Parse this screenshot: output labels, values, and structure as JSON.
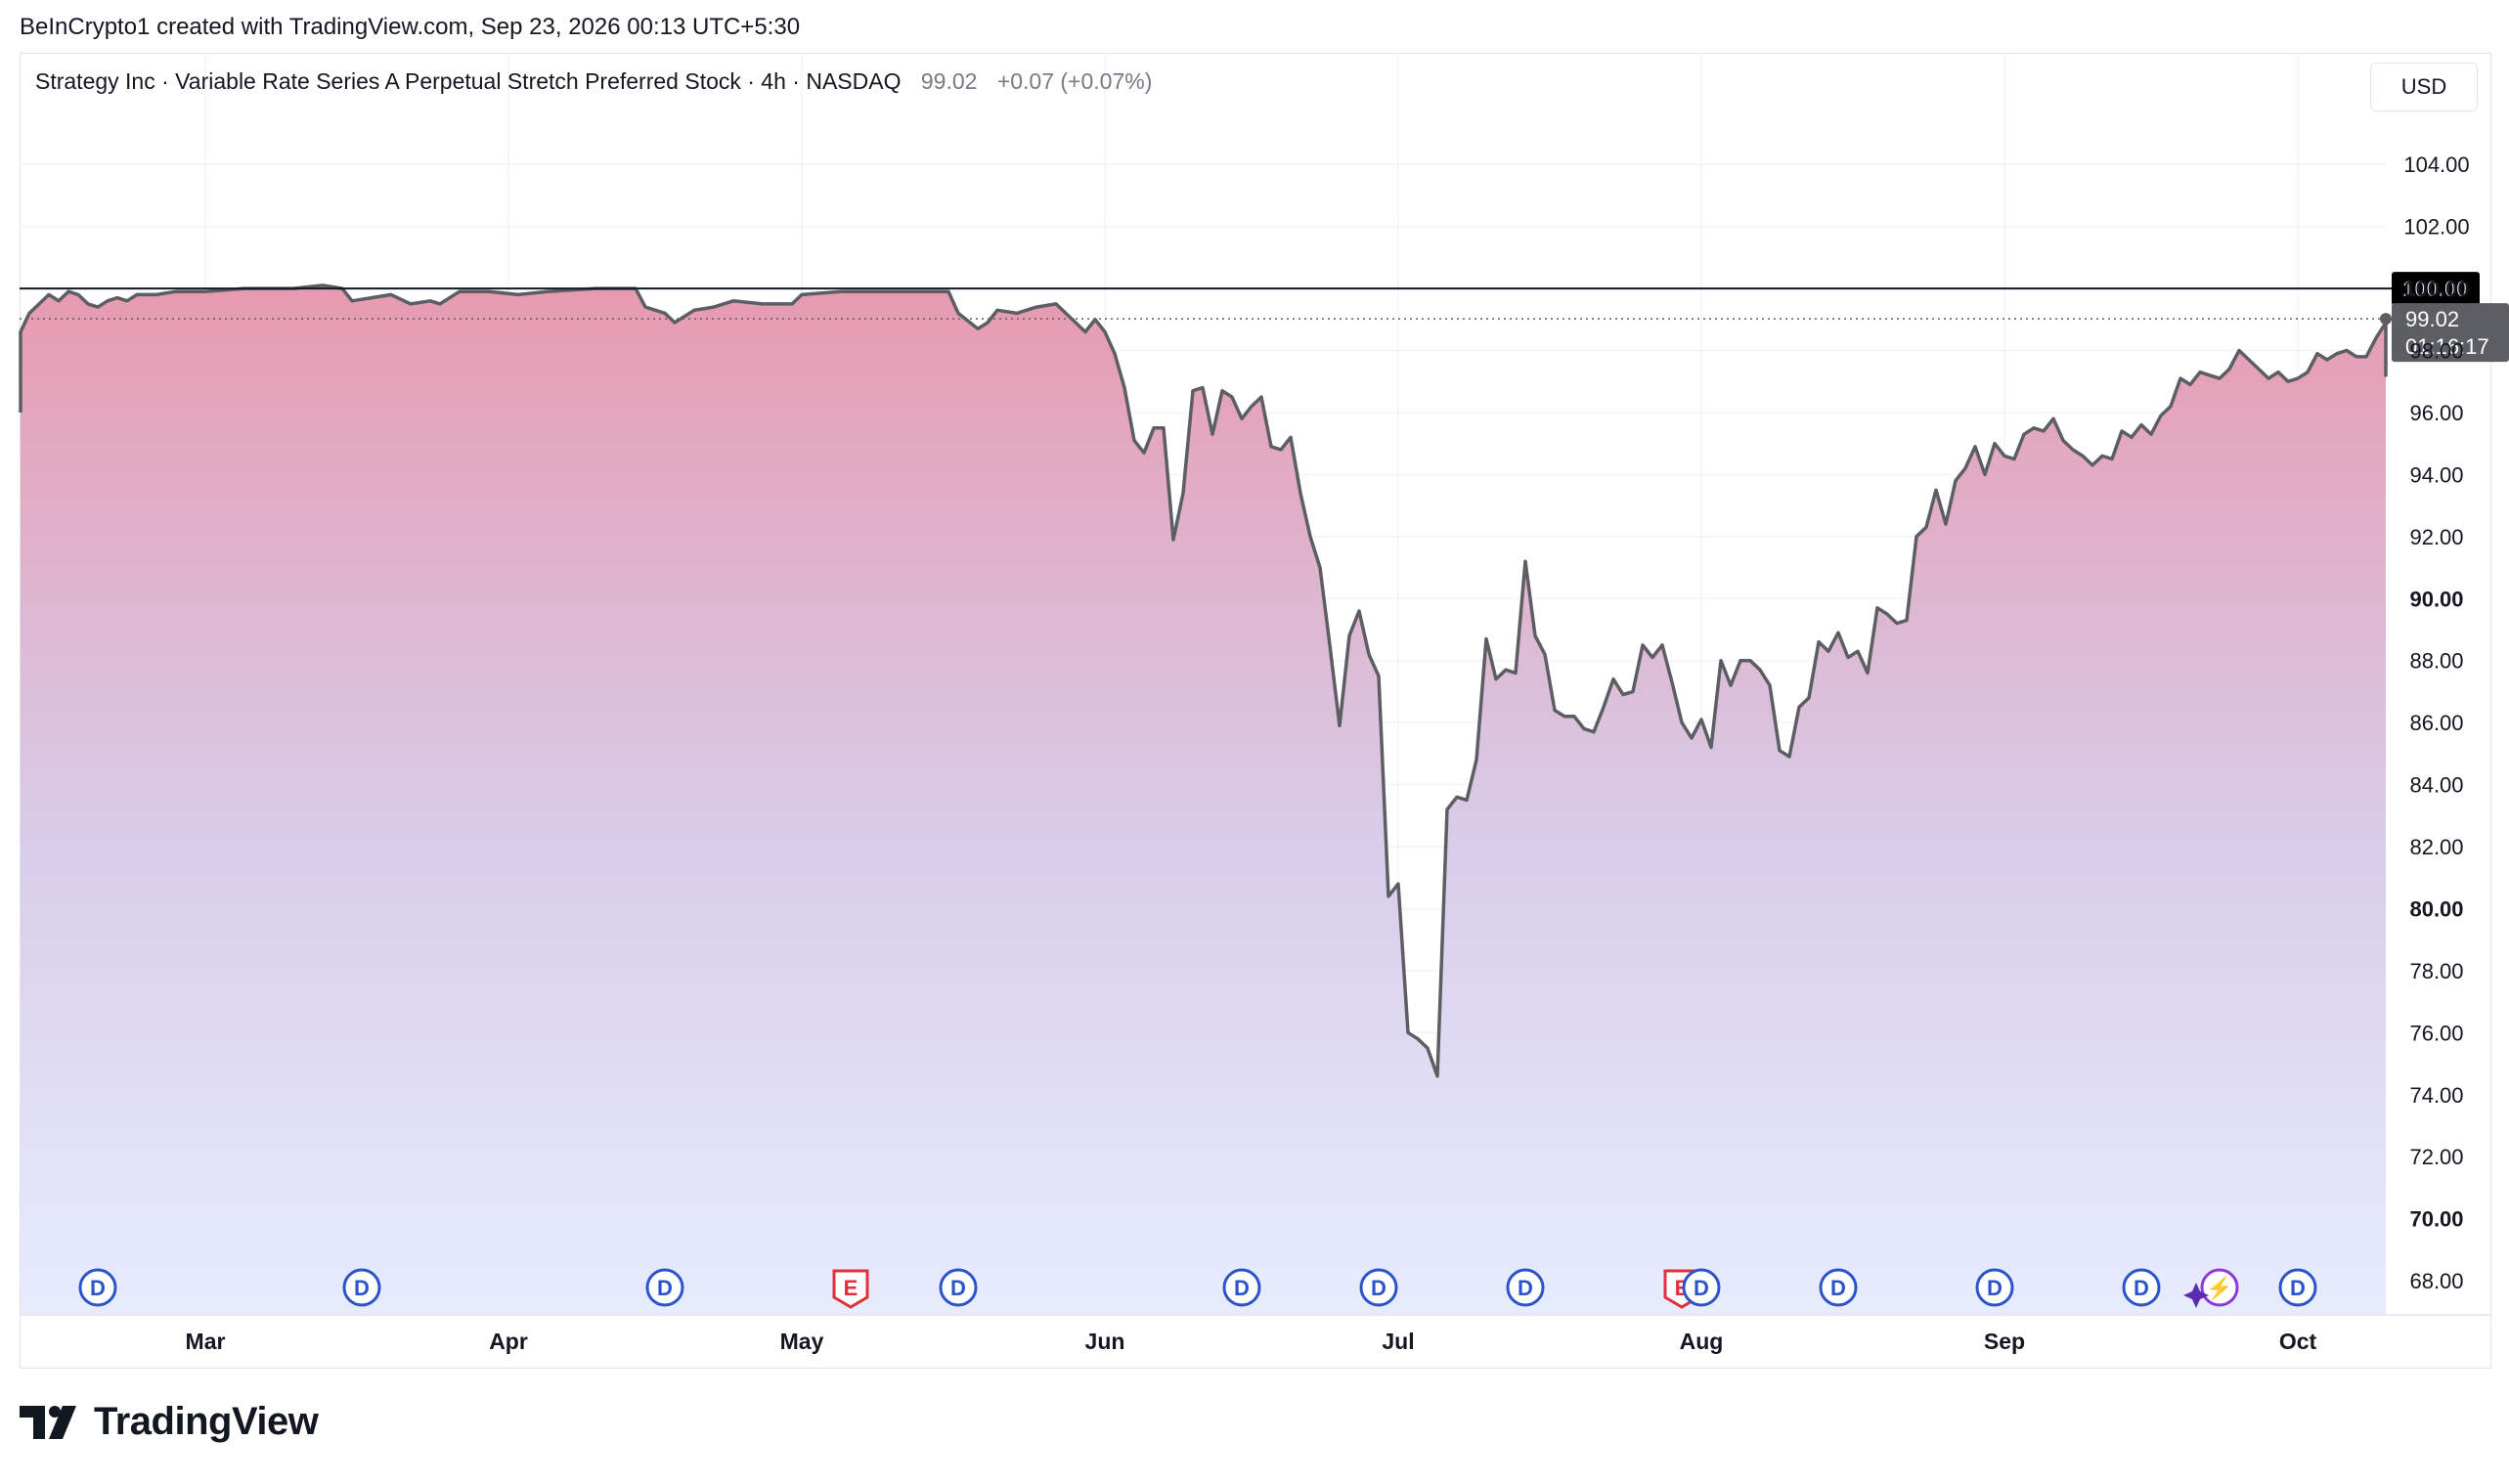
{
  "header": {
    "credit": "BeInCrypto1 created with TradingView.com, Sep 23, 2026 00:13 UTC+5:30"
  },
  "legend": {
    "name": "Strategy Inc · Variable Rate Series A Perpetual Stretch Preferred Stock · 4h · NASDAQ",
    "last": "99.02",
    "change": "+0.07 (+0.07%)"
  },
  "currency": "USD",
  "brand": {
    "name": "TradingView"
  },
  "colors": {
    "line": "#5d5e63",
    "fill_top": "#e69aaf",
    "fill_bottom": "#e7ecfd",
    "marker_blue": "#2a54c9",
    "marker_red": "#e0303a",
    "marker_purple": "#8e3bd6"
  },
  "chart_data": {
    "type": "area",
    "title": "Strategy Inc · Variable Rate Series A Perpetual Stretch Preferred Stock · 4h · NASDAQ",
    "ylim": [
      66.9,
      107.6
    ],
    "y_ticks": [
      68,
      70,
      72,
      74,
      76,
      78,
      80,
      82,
      84,
      86,
      88,
      90,
      92,
      94,
      96,
      98,
      100,
      102,
      104
    ],
    "y_tick_labels": [
      "68.00",
      "70.00",
      "72.00",
      "74.00",
      "76.00",
      "78.00",
      "80.00",
      "82.00",
      "84.00",
      "86.00",
      "88.00",
      "90.00",
      "92.00",
      "94.00",
      "96.00",
      "98.00",
      "100.00",
      "102.00",
      "104.00"
    ],
    "bold_ticks": [
      70,
      80,
      90,
      100
    ],
    "x_range": [
      "2026-02-10",
      "2026-10-10"
    ],
    "x_ticks": [
      {
        "label": "Mar",
        "date": "2026-03-01"
      },
      {
        "label": "Apr",
        "date": "2026-04-01"
      },
      {
        "label": "May",
        "date": "2026-05-01"
      },
      {
        "label": "Jun",
        "date": "2026-06-01"
      },
      {
        "label": "Jul",
        "date": "2026-07-01"
      },
      {
        "label": "Aug",
        "date": "2026-08-01"
      },
      {
        "label": "Sep",
        "date": "2026-09-01"
      },
      {
        "label": "Oct",
        "date": "2026-10-01"
      }
    ],
    "reference_line": {
      "value": 100,
      "label": "100.00"
    },
    "last_price": {
      "value": 99.02,
      "label": "99.02",
      "countdown": "01:16:17"
    },
    "series": [
      {
        "points": [
          [
            "2026-02-09",
            96.0
          ],
          [
            "2026-02-10",
            98.6
          ],
          [
            "2026-02-11",
            99.2
          ],
          [
            "2026-02-12",
            99.5
          ],
          [
            "2026-02-13",
            99.8
          ],
          [
            "2026-02-14",
            99.6
          ],
          [
            "2026-02-15",
            99.9
          ],
          [
            "2026-02-16",
            99.8
          ],
          [
            "2026-02-17",
            99.5
          ],
          [
            "2026-02-18",
            99.4
          ],
          [
            "2026-02-19",
            99.6
          ],
          [
            "2026-02-20",
            99.7
          ],
          [
            "2026-02-21",
            99.6
          ],
          [
            "2026-02-22",
            99.8
          ],
          [
            "2026-02-24",
            99.8
          ],
          [
            "2026-02-26",
            99.9
          ],
          [
            "2026-03-01",
            99.9
          ],
          [
            "2026-03-05",
            100.0
          ],
          [
            "2026-03-10",
            100.0
          ],
          [
            "2026-03-13",
            100.1
          ],
          [
            "2026-03-15",
            100.0
          ],
          [
            "2026-03-16",
            99.6
          ],
          [
            "2026-03-18",
            99.7
          ],
          [
            "2026-03-20",
            99.8
          ],
          [
            "2026-03-22",
            99.5
          ],
          [
            "2026-03-24",
            99.6
          ],
          [
            "2026-03-25",
            99.5
          ],
          [
            "2026-03-27",
            99.9
          ],
          [
            "2026-03-30",
            99.9
          ],
          [
            "2026-04-02",
            99.8
          ],
          [
            "2026-04-05",
            99.9
          ],
          [
            "2026-04-10",
            100.0
          ],
          [
            "2026-04-14",
            100.0
          ],
          [
            "2026-04-15",
            99.4
          ],
          [
            "2026-04-17",
            99.2
          ],
          [
            "2026-04-18",
            98.9
          ],
          [
            "2026-04-20",
            99.3
          ],
          [
            "2026-04-22",
            99.4
          ],
          [
            "2026-04-24",
            99.6
          ],
          [
            "2026-04-27",
            99.5
          ],
          [
            "2026-04-30",
            99.5
          ],
          [
            "2026-05-01",
            99.8
          ],
          [
            "2026-05-05",
            99.9
          ],
          [
            "2026-05-10",
            99.9
          ],
          [
            "2026-05-15",
            99.9
          ],
          [
            "2026-05-16",
            99.9
          ],
          [
            "2026-05-17",
            99.2
          ],
          [
            "2026-05-19",
            98.7
          ],
          [
            "2026-05-20",
            98.9
          ],
          [
            "2026-05-21",
            99.3
          ],
          [
            "2026-05-23",
            99.2
          ],
          [
            "2026-05-25",
            99.4
          ],
          [
            "2026-05-27",
            99.5
          ],
          [
            "2026-05-28",
            99.2
          ],
          [
            "2026-05-30",
            98.6
          ],
          [
            "2026-05-31",
            99.0
          ],
          [
            "2026-06-01",
            98.6
          ],
          [
            "2026-06-02",
            97.9
          ],
          [
            "2026-06-03",
            96.8
          ],
          [
            "2026-06-04",
            95.1
          ],
          [
            "2026-06-05",
            94.7
          ],
          [
            "2026-06-06",
            95.5
          ],
          [
            "2026-06-07",
            95.5
          ],
          [
            "2026-06-08",
            91.9
          ],
          [
            "2026-06-09",
            93.4
          ],
          [
            "2026-06-10",
            96.7
          ],
          [
            "2026-06-11",
            96.8
          ],
          [
            "2026-06-12",
            95.3
          ],
          [
            "2026-06-13",
            96.7
          ],
          [
            "2026-06-14",
            96.5
          ],
          [
            "2026-06-15",
            95.8
          ],
          [
            "2026-06-16",
            96.2
          ],
          [
            "2026-06-17",
            96.5
          ],
          [
            "2026-06-18",
            94.9
          ],
          [
            "2026-06-19",
            94.8
          ],
          [
            "2026-06-20",
            95.2
          ],
          [
            "2026-06-21",
            93.4
          ],
          [
            "2026-06-22",
            92.0
          ],
          [
            "2026-06-23",
            91.0
          ],
          [
            "2026-06-24",
            88.5
          ],
          [
            "2026-06-25",
            85.9
          ],
          [
            "2026-06-26",
            88.8
          ],
          [
            "2026-06-27",
            89.6
          ],
          [
            "2026-06-28",
            88.2
          ],
          [
            "2026-06-29",
            87.5
          ],
          [
            "2026-06-30",
            80.4
          ],
          [
            "2026-07-01",
            80.8
          ],
          [
            "2026-07-02",
            76.0
          ],
          [
            "2026-07-03",
            75.8
          ],
          [
            "2026-07-04",
            75.5
          ],
          [
            "2026-07-05",
            74.6
          ],
          [
            "2026-07-06",
            83.2
          ],
          [
            "2026-07-07",
            83.6
          ],
          [
            "2026-07-08",
            83.5
          ],
          [
            "2026-07-09",
            84.8
          ],
          [
            "2026-07-10",
            88.7
          ],
          [
            "2026-07-11",
            87.4
          ],
          [
            "2026-07-12",
            87.7
          ],
          [
            "2026-07-13",
            87.6
          ],
          [
            "2026-07-14",
            91.2
          ],
          [
            "2026-07-15",
            88.8
          ],
          [
            "2026-07-16",
            88.2
          ],
          [
            "2026-07-17",
            86.4
          ],
          [
            "2026-07-18",
            86.2
          ],
          [
            "2026-07-19",
            86.2
          ],
          [
            "2026-07-20",
            85.8
          ],
          [
            "2026-07-21",
            85.7
          ],
          [
            "2026-07-22",
            86.5
          ],
          [
            "2026-07-23",
            87.4
          ],
          [
            "2026-07-24",
            86.9
          ],
          [
            "2026-07-25",
            87.0
          ],
          [
            "2026-07-26",
            88.5
          ],
          [
            "2026-07-27",
            88.1
          ],
          [
            "2026-07-28",
            88.5
          ],
          [
            "2026-07-29",
            87.3
          ],
          [
            "2026-07-30",
            86.0
          ],
          [
            "2026-07-31",
            85.5
          ],
          [
            "2026-08-01",
            86.1
          ],
          [
            "2026-08-02",
            85.2
          ],
          [
            "2026-08-03",
            88.0
          ],
          [
            "2026-08-04",
            87.2
          ],
          [
            "2026-08-05",
            88.0
          ],
          [
            "2026-08-06",
            88.0
          ],
          [
            "2026-08-07",
            87.7
          ],
          [
            "2026-08-08",
            87.2
          ],
          [
            "2026-08-09",
            85.1
          ],
          [
            "2026-08-10",
            84.9
          ],
          [
            "2026-08-11",
            86.5
          ],
          [
            "2026-08-12",
            86.8
          ],
          [
            "2026-08-13",
            88.6
          ],
          [
            "2026-08-14",
            88.3
          ],
          [
            "2026-08-15",
            88.9
          ],
          [
            "2026-08-16",
            88.1
          ],
          [
            "2026-08-17",
            88.3
          ],
          [
            "2026-08-18",
            87.6
          ],
          [
            "2026-08-19",
            89.7
          ],
          [
            "2026-08-20",
            89.5
          ],
          [
            "2026-08-21",
            89.2
          ],
          [
            "2026-08-22",
            89.3
          ],
          [
            "2026-08-23",
            92.0
          ],
          [
            "2026-08-24",
            92.3
          ],
          [
            "2026-08-25",
            93.5
          ],
          [
            "2026-08-26",
            92.4
          ],
          [
            "2026-08-27",
            93.8
          ],
          [
            "2026-08-28",
            94.2
          ],
          [
            "2026-08-29",
            94.9
          ],
          [
            "2026-08-30",
            94.0
          ],
          [
            "2026-08-31",
            95.0
          ],
          [
            "2026-09-01",
            94.6
          ],
          [
            "2026-09-02",
            94.5
          ],
          [
            "2026-09-03",
            95.3
          ],
          [
            "2026-09-04",
            95.5
          ],
          [
            "2026-09-05",
            95.4
          ],
          [
            "2026-09-06",
            95.8
          ],
          [
            "2026-09-07",
            95.1
          ],
          [
            "2026-09-08",
            94.8
          ],
          [
            "2026-09-09",
            94.6
          ],
          [
            "2026-09-10",
            94.3
          ],
          [
            "2026-09-11",
            94.6
          ],
          [
            "2026-09-12",
            94.5
          ],
          [
            "2026-09-13",
            95.4
          ],
          [
            "2026-09-14",
            95.2
          ],
          [
            "2026-09-15",
            95.6
          ],
          [
            "2026-09-16",
            95.3
          ],
          [
            "2026-09-17",
            95.9
          ],
          [
            "2026-09-18",
            96.2
          ],
          [
            "2026-09-19",
            97.1
          ],
          [
            "2026-09-20",
            96.9
          ],
          [
            "2026-09-21",
            97.3
          ],
          [
            "2026-09-22",
            97.2
          ],
          [
            "2026-09-23",
            97.1
          ],
          [
            "2026-09-24",
            97.4
          ],
          [
            "2026-09-25",
            98.0
          ],
          [
            "2026-09-26",
            97.7
          ],
          [
            "2026-09-27",
            97.4
          ],
          [
            "2026-09-28",
            97.1
          ],
          [
            "2026-09-29",
            97.3
          ],
          [
            "2026-09-30",
            97.0
          ],
          [
            "2026-10-01",
            97.1
          ],
          [
            "2026-10-02",
            97.3
          ],
          [
            "2026-10-03",
            97.9
          ],
          [
            "2026-10-04",
            97.7
          ],
          [
            "2026-10-05",
            97.9
          ],
          [
            "2026-10-06",
            98.0
          ],
          [
            "2026-10-07",
            97.8
          ],
          [
            "2026-10-08",
            97.8
          ],
          [
            "2026-10-09",
            98.4
          ],
          [
            "2026-10-10",
            98.9
          ],
          [
            "2026-10-11",
            98.7
          ],
          [
            "2026-10-12",
            97.2
          ],
          [
            "2026-10-13",
            97.8
          ],
          [
            "2026-10-14",
            97.2
          ],
          [
            "2026-10-15",
            98.0
          ],
          [
            "2026-10-16",
            98.2
          ],
          [
            "2026-10-17",
            98.7
          ],
          [
            "2026-10-18",
            98.5
          ],
          [
            "2026-10-19",
            98.9
          ],
          [
            "2026-10-20",
            98.8
          ],
          [
            "2026-10-21",
            99.02
          ]
        ]
      }
    ],
    "event_markers": [
      {
        "date": "2026-02-18",
        "label": "D",
        "kind": "dividend"
      },
      {
        "date": "2026-03-17",
        "label": "D",
        "kind": "dividend"
      },
      {
        "date": "2026-04-17",
        "label": "D",
        "kind": "dividend"
      },
      {
        "date": "2026-05-06",
        "label": "E",
        "kind": "earnings"
      },
      {
        "date": "2026-05-17",
        "label": "D",
        "kind": "dividend"
      },
      {
        "date": "2026-06-15",
        "label": "D",
        "kind": "dividend"
      },
      {
        "date": "2026-06-29",
        "label": "D",
        "kind": "dividend"
      },
      {
        "date": "2026-07-14",
        "label": "D",
        "kind": "dividend"
      },
      {
        "date": "2026-07-30",
        "label": "E",
        "kind": "earnings"
      },
      {
        "date": "2026-08-01",
        "label": "D",
        "kind": "dividend"
      },
      {
        "date": "2026-08-15",
        "label": "D",
        "kind": "dividend"
      },
      {
        "date": "2026-08-31",
        "label": "D",
        "kind": "dividend"
      },
      {
        "date": "2026-09-15",
        "label": "D",
        "kind": "dividend"
      },
      {
        "date": "2026-09-23",
        "label": "⚡",
        "kind": "ai"
      },
      {
        "date": "2026-10-01",
        "label": "D",
        "kind": "dividend"
      }
    ]
  }
}
